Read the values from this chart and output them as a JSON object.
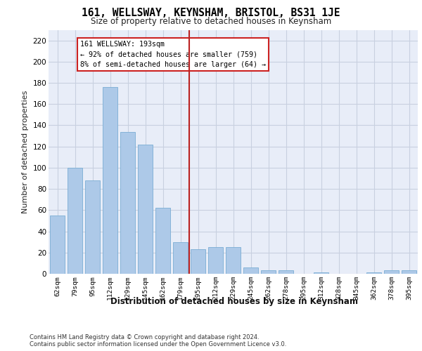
{
  "title": "161, WELLSWAY, KEYNSHAM, BRISTOL, BS31 1JE",
  "subtitle": "Size of property relative to detached houses in Keynsham",
  "xlabel": "Distribution of detached houses by size in Keynsham",
  "ylabel": "Number of detached properties",
  "categories": [
    "62sqm",
    "79sqm",
    "95sqm",
    "112sqm",
    "129sqm",
    "145sqm",
    "162sqm",
    "179sqm",
    "195sqm",
    "212sqm",
    "229sqm",
    "245sqm",
    "262sqm",
    "278sqm",
    "295sqm",
    "312sqm",
    "328sqm",
    "345sqm",
    "362sqm",
    "378sqm",
    "395sqm"
  ],
  "values": [
    55,
    100,
    88,
    176,
    134,
    122,
    62,
    30,
    23,
    25,
    25,
    6,
    3,
    3,
    0,
    1,
    0,
    0,
    1,
    3,
    3
  ],
  "bar_color": "#adc9e8",
  "bar_edge_color": "#7aadd4",
  "marker_line_color": "#bb2222",
  "annotation_text": "161 WELLSWAY: 193sqm\n← 92% of detached houses are smaller (759)\n8% of semi-detached houses are larger (64) →",
  "annotation_box_color": "#ffffff",
  "annotation_box_edge": "#cc2222",
  "ylim": [
    0,
    230
  ],
  "yticks": [
    0,
    20,
    40,
    60,
    80,
    100,
    120,
    140,
    160,
    180,
    200,
    220
  ],
  "grid_color": "#c8d0e0",
  "bg_color": "#e8edf8",
  "footer_line1": "Contains HM Land Registry data © Crown copyright and database right 2024.",
  "footer_line2": "Contains public sector information licensed under the Open Government Licence v3.0."
}
